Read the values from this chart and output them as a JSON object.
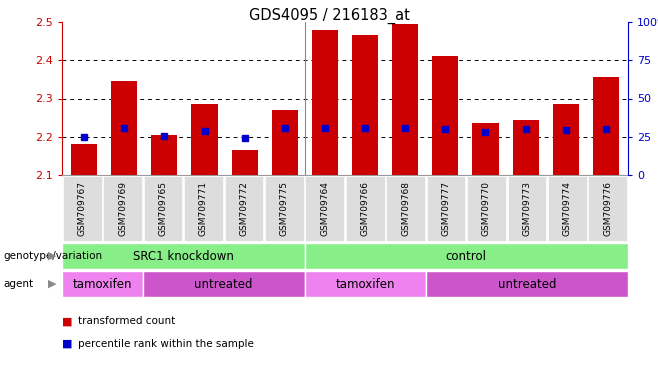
{
  "title": "GDS4095 / 216183_at",
  "samples": [
    "GSM709767",
    "GSM709769",
    "GSM709765",
    "GSM709771",
    "GSM709772",
    "GSM709775",
    "GSM709764",
    "GSM709766",
    "GSM709768",
    "GSM709777",
    "GSM709770",
    "GSM709773",
    "GSM709774",
    "GSM709776"
  ],
  "bar_values": [
    2.18,
    2.345,
    2.205,
    2.285,
    2.165,
    2.27,
    2.48,
    2.465,
    2.495,
    2.41,
    2.235,
    2.245,
    2.285,
    2.355
  ],
  "blue_values": [
    2.2,
    2.222,
    2.203,
    2.215,
    2.197,
    2.222,
    2.222,
    2.222,
    2.222,
    2.22,
    2.213,
    2.22,
    2.218,
    2.22
  ],
  "ylim_left": [
    2.1,
    2.5
  ],
  "ylim_right": [
    0,
    100
  ],
  "yticks_left": [
    2.1,
    2.2,
    2.3,
    2.4,
    2.5
  ],
  "yticks_right": [
    0,
    25,
    50,
    75,
    100
  ],
  "bar_color": "#cc0000",
  "marker_color": "#0000cc",
  "grid_values": [
    2.2,
    2.3,
    2.4
  ],
  "genotype_groups": [
    {
      "label": "SRC1 knockdown",
      "start": 0,
      "end": 6,
      "color": "#88ee88"
    },
    {
      "label": "control",
      "start": 6,
      "end": 14,
      "color": "#88ee88"
    }
  ],
  "agent_groups": [
    {
      "label": "tamoxifen",
      "start": 0,
      "end": 2,
      "color": "#ee82ee"
    },
    {
      "label": "untreated",
      "start": 2,
      "end": 6,
      "color": "#cc55cc"
    },
    {
      "label": "tamoxifen",
      "start": 6,
      "end": 9,
      "color": "#ee82ee"
    },
    {
      "label": "untreated",
      "start": 9,
      "end": 14,
      "color": "#cc55cc"
    }
  ],
  "legend_items": [
    {
      "label": "transformed count",
      "color": "#cc0000"
    },
    {
      "label": "percentile rank within the sample",
      "color": "#0000cc"
    }
  ],
  "left_axis_color": "#cc0000",
  "right_axis_color": "#0000cc",
  "row_labels": [
    "genotype/variation",
    "agent"
  ],
  "separator_after_idx": 5,
  "sample_box_color": "#dddddd",
  "background_color": "#ffffff"
}
